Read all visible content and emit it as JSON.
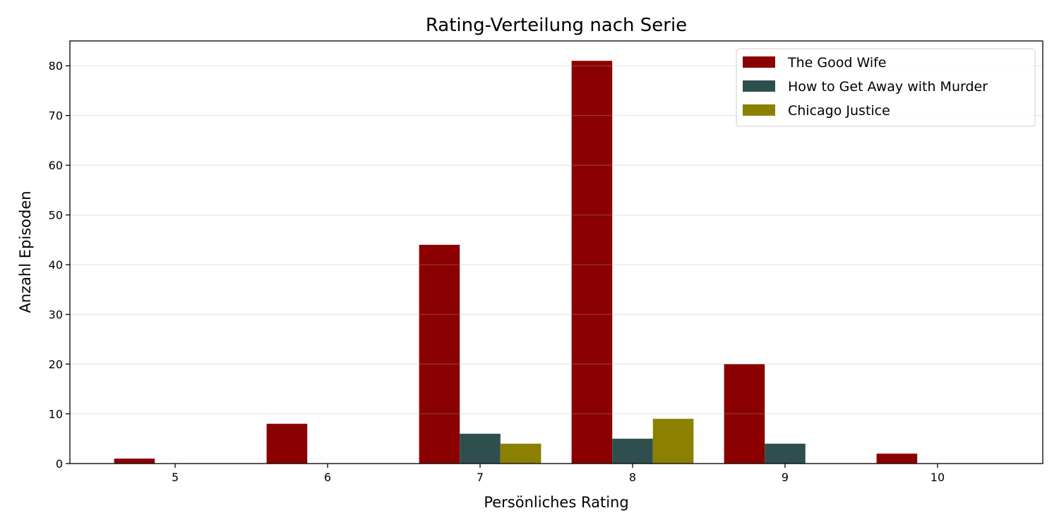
{
  "chart_data": {
    "type": "bar",
    "title": "Rating-Verteilung nach Serie",
    "xlabel": "Persönliches Rating",
    "ylabel": "Anzahl Episoden",
    "categories": [
      "5",
      "6",
      "7",
      "8",
      "9",
      "10"
    ],
    "x": [
      5,
      6,
      7,
      8,
      9,
      10
    ],
    "series": [
      {
        "name": "The Good Wife",
        "color": "#8b0000",
        "values": [
          1,
          8,
          44,
          81,
          20,
          2
        ]
      },
      {
        "name": "How to Get Away with Murder",
        "color": "#2f4f4f",
        "values": [
          0,
          0,
          6,
          5,
          4,
          0
        ]
      },
      {
        "name": "Chicago Justice",
        "color": "#8b8000",
        "values": [
          0,
          0,
          4,
          9,
          0,
          0
        ]
      }
    ],
    "xlim": [
      4.31,
      10.69
    ],
    "ylim": [
      0,
      85
    ],
    "yticks": [
      0,
      10,
      20,
      30,
      40,
      50,
      60,
      70,
      80
    ],
    "grid": "y",
    "legend": "top-right"
  }
}
